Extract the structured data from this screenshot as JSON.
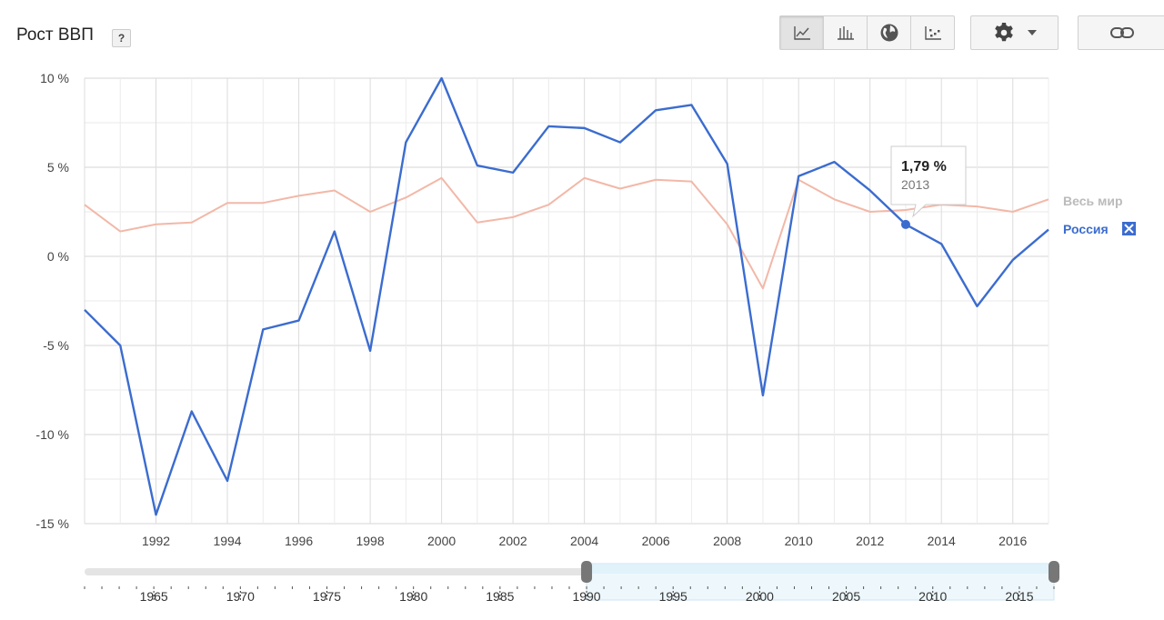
{
  "header": {
    "title": "Рост ВВП",
    "help": "?"
  },
  "toolbar": {
    "buttons": [
      "line-chart-icon",
      "bar-chart-icon",
      "globe-icon",
      "scatter-icon"
    ],
    "active": "line-chart-icon",
    "settings_icon": "gear-icon",
    "dropdown_icon": "caret-down-icon",
    "link_icon": "link-icon"
  },
  "tooltip": {
    "value": "1,79 %",
    "year": "2013"
  },
  "range_slider": {
    "ticks": [
      "1965",
      "1970",
      "1975",
      "1980",
      "1985",
      "1990",
      "1995",
      "2000",
      "2005",
      "2010",
      "2015"
    ],
    "selected_start": 1990,
    "selected_end": 2017
  },
  "colors": {
    "russia": "#3b6ccf",
    "world": "#f2b8a8",
    "world_label": "#bbbbbb"
  },
  "chart_data": {
    "type": "line",
    "title": "Рост ВВП",
    "x_tick_labels": [
      "1992",
      "1994",
      "1996",
      "1998",
      "2000",
      "2002",
      "2004",
      "2006",
      "2008",
      "2010",
      "2012",
      "2014",
      "2016"
    ],
    "y_tick_labels": [
      "10 %",
      "5 %",
      "0 %",
      "-5 %",
      "-10 %",
      "-15 %"
    ],
    "xlim": [
      1990,
      2017
    ],
    "ylim": [
      -15,
      10
    ],
    "grid": true,
    "legend_position": "right",
    "x": [
      1990,
      1991,
      1992,
      1993,
      1994,
      1995,
      1996,
      1997,
      1998,
      1999,
      2000,
      2001,
      2002,
      2003,
      2004,
      2005,
      2006,
      2007,
      2008,
      2009,
      2010,
      2011,
      2012,
      2013,
      2014,
      2015,
      2016,
      2017
    ],
    "series": [
      {
        "name": "Весь мир",
        "values": [
          2.9,
          1.4,
          1.8,
          1.9,
          3.0,
          3.0,
          3.4,
          3.7,
          2.5,
          3.3,
          4.4,
          1.9,
          2.2,
          2.9,
          4.4,
          3.8,
          4.3,
          4.2,
          1.8,
          -1.8,
          4.3,
          3.2,
          2.5,
          2.6,
          2.9,
          2.8,
          2.5,
          3.2
        ],
        "removable": false
      },
      {
        "name": "Россия",
        "values": [
          -3.0,
          -5.0,
          -14.5,
          -8.7,
          -12.6,
          -4.1,
          -3.6,
          1.4,
          -5.3,
          6.4,
          10.0,
          5.1,
          4.7,
          7.3,
          7.2,
          6.4,
          8.2,
          8.5,
          5.2,
          -7.8,
          4.5,
          5.3,
          3.7,
          1.79,
          0.7,
          -2.8,
          -0.2,
          1.5
        ],
        "removable": true
      }
    ]
  }
}
